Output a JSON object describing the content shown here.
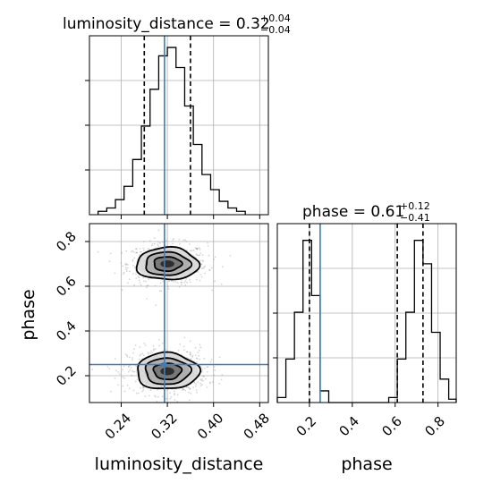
{
  "chart_data": {
    "type": "corner",
    "parameters": [
      "luminosity_distance",
      "phase"
    ],
    "truth": {
      "luminosity_distance": 0.315,
      "phase": 0.25
    },
    "titles": {
      "luminosity_distance": {
        "label": "luminosity_distance",
        "median": "0.32",
        "plus": "+0.04",
        "minus": "−0.04"
      },
      "phase": {
        "label": "phase",
        "median": "0.61",
        "plus": "+0.12",
        "minus": "−0.41"
      }
    },
    "marginals": {
      "luminosity_distance": {
        "range": [
          0.185,
          0.495
        ],
        "quantiles": [
          0.28,
          0.36
        ],
        "bin_edges": [
          0.2,
          0.215,
          0.23,
          0.245,
          0.26,
          0.275,
          0.29,
          0.305,
          0.32,
          0.335,
          0.35,
          0.365,
          0.38,
          0.395,
          0.41,
          0.425,
          0.44,
          0.455
        ],
        "counts": [
          0.02,
          0.04,
          0.09,
          0.17,
          0.33,
          0.53,
          0.75,
          0.95,
          1.0,
          0.88,
          0.65,
          0.42,
          0.24,
          0.15,
          0.08,
          0.04,
          0.02
        ]
      },
      "phase": {
        "range": [
          0.05,
          0.885
        ],
        "quantiles": [
          0.2,
          0.61,
          0.73
        ],
        "bin_edges": [
          0.05,
          0.09,
          0.13,
          0.17,
          0.21,
          0.25,
          0.29,
          0.33,
          0.37,
          0.41,
          0.45,
          0.49,
          0.53,
          0.57,
          0.61,
          0.65,
          0.69,
          0.73,
          0.77,
          0.81,
          0.85,
          0.885
        ],
        "counts": [
          0.03,
          0.26,
          0.54,
          0.97,
          0.64,
          0.07,
          0.0,
          0.0,
          0.0,
          0.0,
          0.0,
          0.0,
          0.0,
          0.03,
          0.26,
          0.54,
          0.97,
          0.83,
          0.42,
          0.14,
          0.02
        ]
      }
    },
    "joint": {
      "xrange": [
        0.185,
        0.495
      ],
      "yrange": [
        0.08,
        0.88
      ],
      "blobs": [
        {
          "cx": 0.32,
          "cy": 0.7,
          "sx": 0.03,
          "sy": 0.04
        },
        {
          "cx": 0.32,
          "cy": 0.22,
          "sx": 0.03,
          "sy": 0.045
        }
      ],
      "contour_levels": [
        1.8,
        1.3,
        0.8,
        0.4
      ]
    },
    "axes": {
      "luminosity_distance": {
        "xlabel": "luminosity_distance",
        "ticks": [
          0.24,
          0.32,
          0.4,
          0.48
        ],
        "tick_labels": [
          "0.24",
          "0.32",
          "0.40",
          "0.48"
        ]
      },
      "phase_y": {
        "ylabel": "phase",
        "ticks": [
          0.2,
          0.4,
          0.6,
          0.8
        ],
        "tick_labels": [
          "0.2",
          "0.4",
          "0.6",
          "0.8"
        ]
      },
      "phase_x": {
        "xlabel": "phase",
        "ticks": [
          0.2,
          0.4,
          0.6,
          0.8
        ],
        "tick_labels": [
          "0.2",
          "0.4",
          "0.6",
          "0.8"
        ]
      }
    },
    "grid": true
  }
}
